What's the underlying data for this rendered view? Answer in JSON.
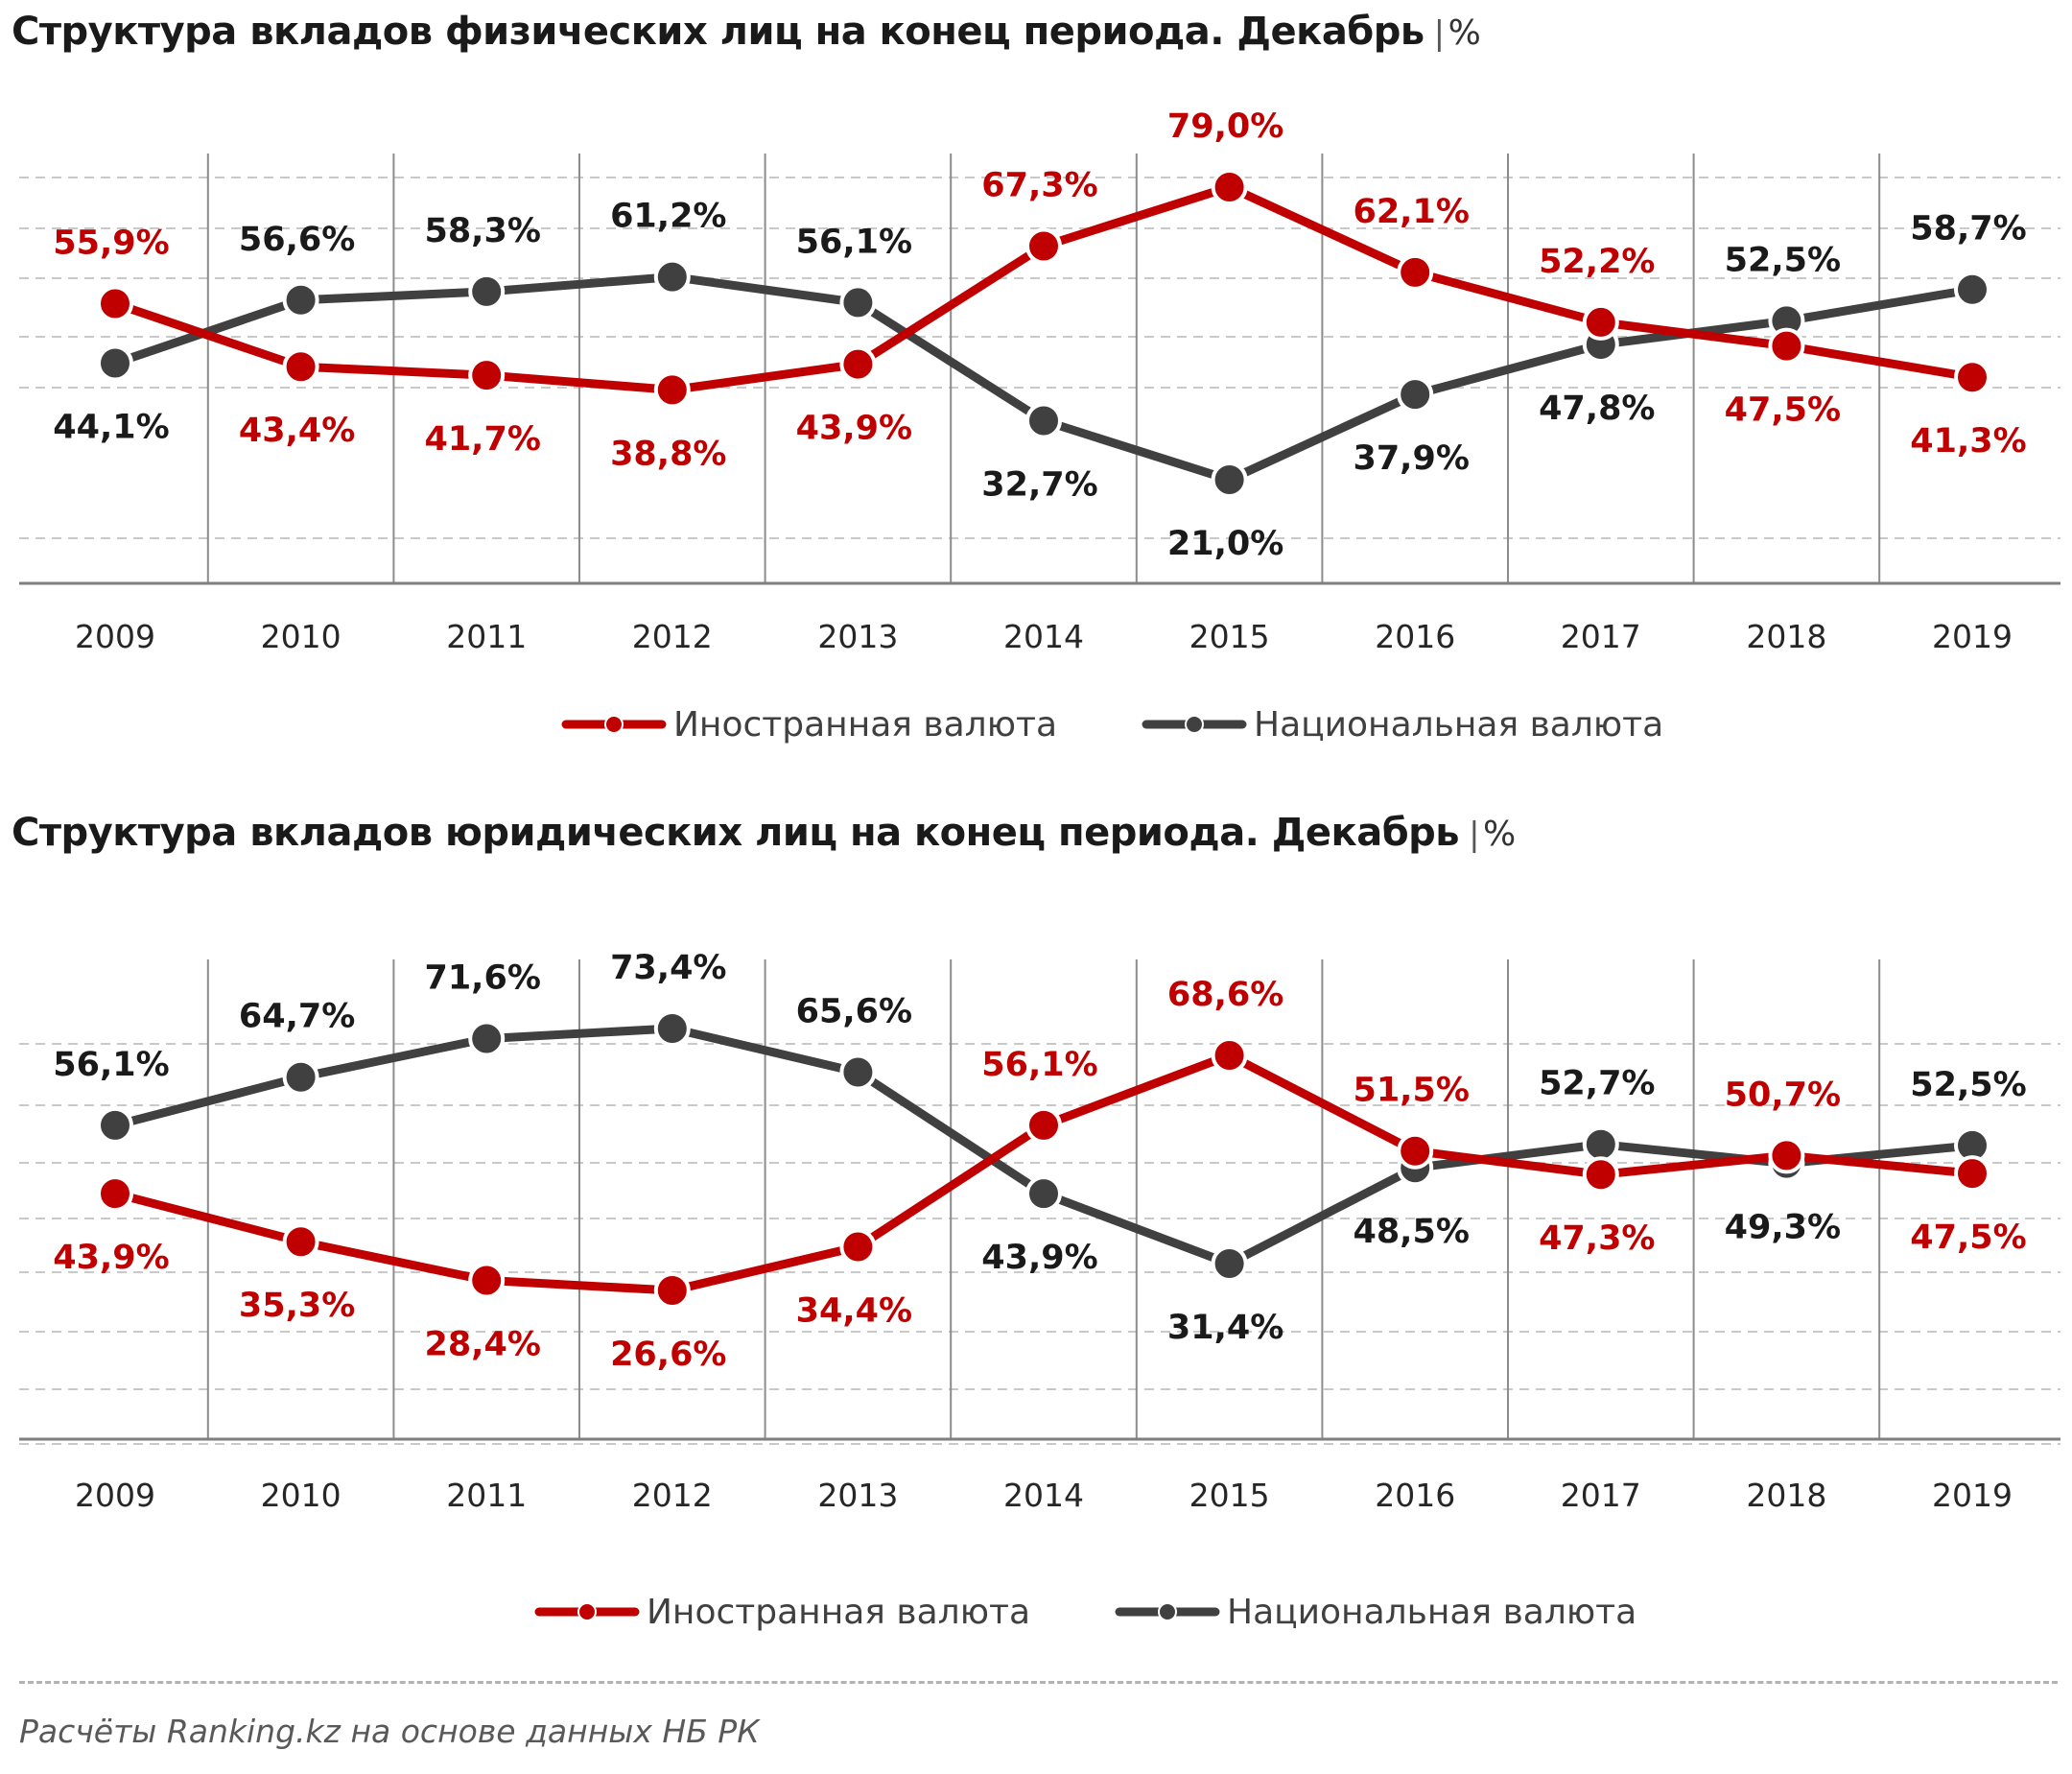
{
  "colors": {
    "foreign": "#c00000",
    "national": "#404040",
    "grid": "#c8c8c8",
    "label_foreign": "#c00000",
    "label_national": "#1a1a1a"
  },
  "charts": [
    {
      "title": "Структура вкладов физических лиц на конец периода. Декабрь",
      "separator": "|",
      "unit": "%",
      "legend": {
        "foreign": "Иностранная валюта",
        "national": "Национальная валюта"
      }
    },
    {
      "title": "Структура вкладов юридических лиц на конец периода. Декабрь",
      "separator": "|",
      "unit": "%",
      "legend": {
        "foreign": "Иностранная валюта",
        "national": "Национальная валюта"
      }
    }
  ],
  "chart_data": [
    {
      "type": "line",
      "title": "Структура вкладов физических лиц на конец периода. Декабрь | %",
      "categories": [
        "2009",
        "2010",
        "2011",
        "2012",
        "2013",
        "2014",
        "2015",
        "2016",
        "2017",
        "2018",
        "2019"
      ],
      "series": [
        {
          "name": "Иностранная валюта",
          "values": [
            55.9,
            43.4,
            41.7,
            38.8,
            43.9,
            67.3,
            79.0,
            62.1,
            52.2,
            47.5,
            41.3
          ],
          "labels": [
            "55,9%",
            "43,4%",
            "41,7%",
            "38,8%",
            "43,9%",
            "67,3%",
            "79,0%",
            "62,1%",
            "52,2%",
            "47,5%",
            "41,3%"
          ]
        },
        {
          "name": "Национальная валюта",
          "values": [
            44.1,
            56.6,
            58.3,
            61.2,
            56.1,
            32.7,
            21.0,
            37.9,
            47.8,
            52.5,
            58.7
          ],
          "labels": [
            "44,1%",
            "56,6%",
            "58,3%",
            "61,2%",
            "56,1%",
            "32,7%",
            "21,0%",
            "37,9%",
            "47,8%",
            "52,5%",
            "58,7%"
          ]
        }
      ],
      "foreign_label_pos": [
        "above",
        "below",
        "below",
        "below",
        "below",
        "above",
        "above",
        "above",
        "above",
        "below",
        "below"
      ],
      "national_label_pos": [
        "below",
        "above",
        "above",
        "above",
        "above",
        "below",
        "below",
        "below",
        "below",
        "above",
        "above"
      ],
      "legend_position": "bottom",
      "grid": "horizontal dashed"
    },
    {
      "type": "line",
      "title": "Структура вкладов юридических лиц на конец периода. Декабрь | %",
      "categories": [
        "2009",
        "2010",
        "2011",
        "2012",
        "2013",
        "2014",
        "2015",
        "2016",
        "2017",
        "2018",
        "2019"
      ],
      "series": [
        {
          "name": "Иностранная валюта",
          "values": [
            43.9,
            35.3,
            28.4,
            26.6,
            34.4,
            56.1,
            68.6,
            51.5,
            47.3,
            50.7,
            47.5
          ],
          "labels": [
            "43,9%",
            "35,3%",
            "28,4%",
            "26,6%",
            "34,4%",
            "56,1%",
            "68,6%",
            "51,5%",
            "47,3%",
            "50,7%",
            "47,5%"
          ]
        },
        {
          "name": "Национальная валюта",
          "values": [
            56.1,
            64.7,
            71.6,
            73.4,
            65.6,
            43.9,
            31.4,
            48.5,
            52.7,
            49.3,
            52.5
          ],
          "labels": [
            "56,1%",
            "64,7%",
            "71,6%",
            "73,4%",
            "65,6%",
            "43,9%",
            "31,4%",
            "48,5%",
            "52,7%",
            "49,3%",
            "52,5%"
          ]
        }
      ],
      "foreign_label_pos": [
        "below",
        "below",
        "below",
        "below",
        "below",
        "above",
        "above",
        "above",
        "below",
        "above",
        "below"
      ],
      "national_label_pos": [
        "above",
        "above",
        "above",
        "above",
        "above",
        "below",
        "below",
        "below",
        "above",
        "below",
        "above"
      ],
      "legend_position": "bottom",
      "grid": "horizontal dashed"
    }
  ],
  "source": "Расчёты Ranking.kz на основе данных  НБ РК"
}
